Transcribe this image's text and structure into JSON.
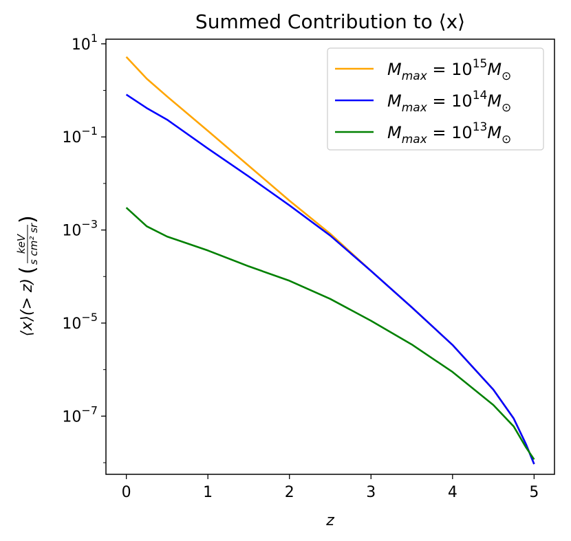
{
  "chart_data": {
    "type": "line",
    "title": "Summed Contribution to ⟨x⟩",
    "xlabel": "z",
    "ylabel": "⟨x⟩(> z)",
    "ylabel_unit_num": "keV",
    "ylabel_unit_den": "s cm² sr",
    "xlim": [
      -0.25,
      5.25
    ],
    "ylim_log10": [
      -8.25,
      1.1
    ],
    "yscale": "log",
    "grid": false,
    "legend_position": "top-right",
    "x_ticks": [
      {
        "value": 0,
        "label": "0"
      },
      {
        "value": 1,
        "label": "1"
      },
      {
        "value": 2,
        "label": "2"
      },
      {
        "value": 3,
        "label": "3"
      },
      {
        "value": 4,
        "label": "4"
      },
      {
        "value": 5,
        "label": "5"
      }
    ],
    "y_ticks": [
      {
        "exp": 1,
        "base": "10",
        "sup": "1"
      },
      {
        "exp": -1,
        "base": "10",
        "sup": "−1"
      },
      {
        "exp": -3,
        "base": "10",
        "sup": "−3"
      },
      {
        "exp": -5,
        "base": "10",
        "sup": "−5"
      },
      {
        "exp": -7,
        "base": "10",
        "sup": "−7"
      }
    ],
    "x": [
      0,
      0.25,
      0.5,
      1.0,
      1.5,
      2.0,
      2.5,
      3.0,
      3.5,
      4.0,
      4.5,
      4.75,
      4.9,
      5.0
    ],
    "series": [
      {
        "name": "M_max = 10^15 M_⊙",
        "label_base": "10",
        "label_exp": "15",
        "color": "#ffa500",
        "log10_values": [
          0.72,
          0.25,
          -0.13,
          -0.87,
          -1.62,
          -2.37,
          -3.08,
          -3.88,
          -4.66,
          -5.47,
          -6.43,
          -7.05,
          -7.6,
          -8.03
        ]
      },
      {
        "name": "M_max = 10^14 M_⊙",
        "label_base": "10",
        "label_exp": "14",
        "color": "#0000ff",
        "log10_values": [
          -0.09,
          -0.38,
          -0.63,
          -1.25,
          -1.85,
          -2.47,
          -3.12,
          -3.88,
          -4.66,
          -5.47,
          -6.43,
          -7.05,
          -7.6,
          -8.03
        ]
      },
      {
        "name": "M_max = 10^13 M_⊙",
        "label_base": "10",
        "label_exp": "13",
        "color": "#008000",
        "log10_values": [
          -2.52,
          -2.92,
          -3.14,
          -3.44,
          -3.78,
          -4.09,
          -4.48,
          -4.95,
          -5.46,
          -6.05,
          -6.76,
          -7.22,
          -7.67,
          -7.93
        ]
      }
    ]
  }
}
